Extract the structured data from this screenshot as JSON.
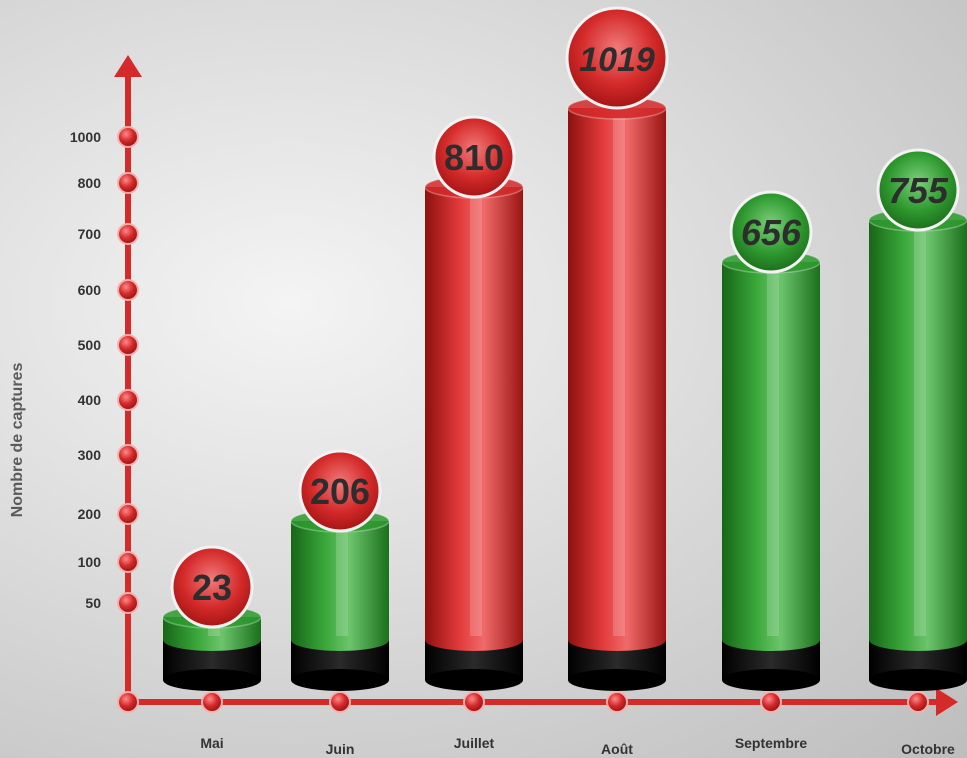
{
  "chart_data": {
    "type": "bar",
    "title": "",
    "ylabel": "Nombre de captures",
    "xlabel": "",
    "categories": [
      "Mai",
      "Juin",
      "Juillet",
      "Août",
      "Septembre",
      "Octobre"
    ],
    "values": [
      23,
      206,
      810,
      1019,
      656,
      755
    ],
    "value_labels": [
      "23",
      "206",
      "810",
      "1019",
      "656",
      "755"
    ],
    "bar_colors": [
      "#2f9a2f",
      "#2f9a2f",
      "#d42a2a",
      "#d42a2a",
      "#2f9a2f",
      "#2f9a2f"
    ],
    "label_colors": [
      "#d42a2a",
      "#d42a2a",
      "#d42a2a",
      "#d42a2a",
      "#2f9a2f",
      "#2f9a2f"
    ],
    "y_ticks": [
      "50",
      "100",
      "200",
      "300",
      "400",
      "500",
      "600",
      "700",
      "800",
      "1000"
    ],
    "axis_color": "#d42a2a",
    "legend": false,
    "grid": false
  }
}
